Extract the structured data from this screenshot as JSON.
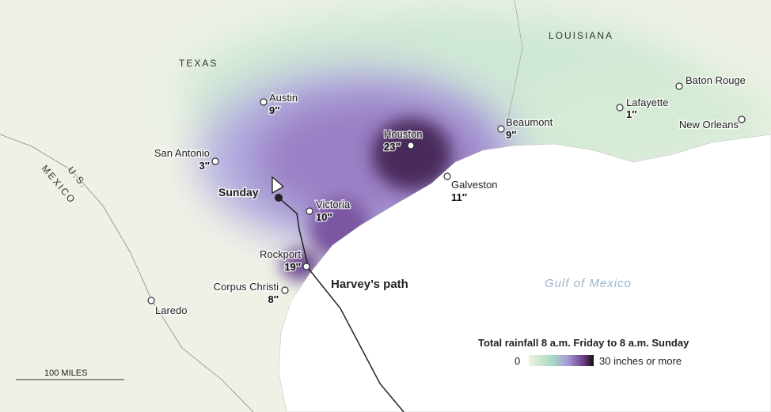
{
  "map": {
    "regions": {
      "texas": "TEXAS",
      "louisiana": "LOUISIANA",
      "us": "U.S.",
      "mexico": "MEXICO",
      "gulf": "Gulf of Mexico"
    },
    "cities": [
      {
        "name": "Austin",
        "rainfall": "9″"
      },
      {
        "name": "San Antonio",
        "rainfall": "3″"
      },
      {
        "name": "Houston",
        "rainfall": "23″"
      },
      {
        "name": "Beaumont",
        "rainfall": "9″"
      },
      {
        "name": "Galveston",
        "rainfall": "11″"
      },
      {
        "name": "Victoria",
        "rainfall": "10″"
      },
      {
        "name": "Rockport",
        "rainfall": "19″"
      },
      {
        "name": "Corpus Christi",
        "rainfall": "8″"
      },
      {
        "name": "Lafayette",
        "rainfall": "1″"
      },
      {
        "name": "Laredo"
      },
      {
        "name": "Baton Rouge"
      },
      {
        "name": "New Orleans"
      }
    ],
    "path": {
      "label": "Harvey’s path",
      "day": "Sunday"
    },
    "legend": {
      "title": "Total rainfall 8 a.m. Friday to 8 a.m. Sunday",
      "min": "0",
      "max": "30 inches or more"
    },
    "scale": "100 MILES"
  }
}
